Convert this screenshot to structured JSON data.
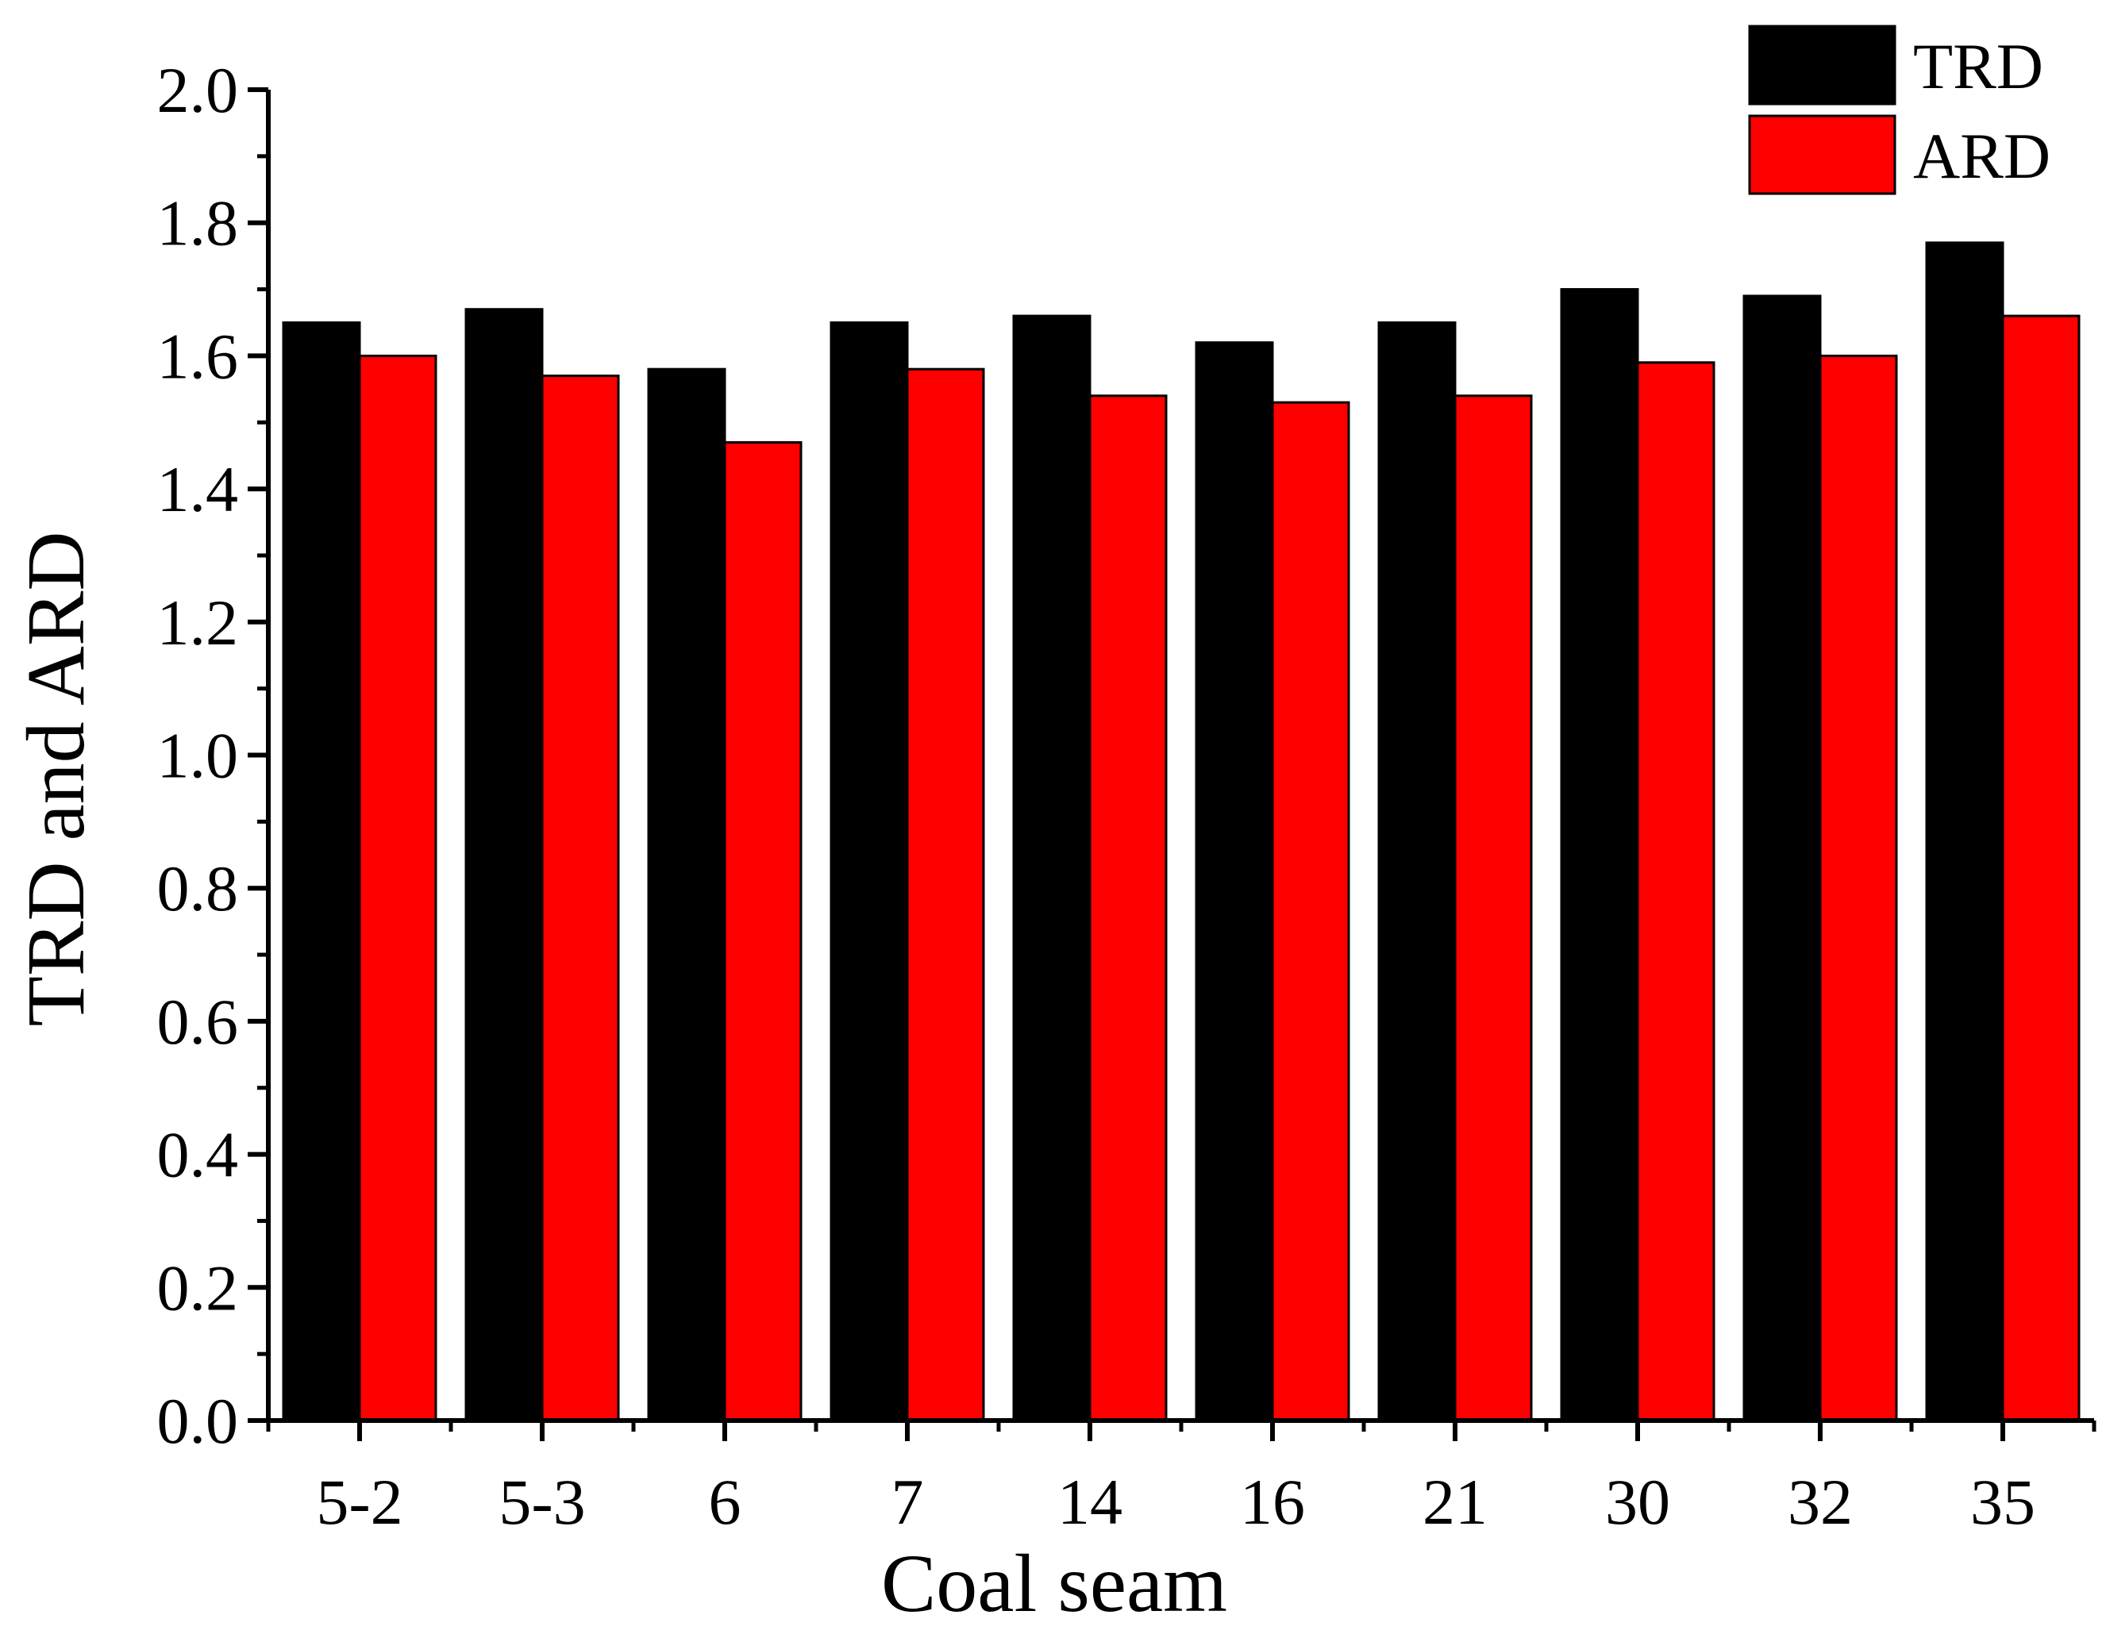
{
  "chart_data": {
    "type": "bar",
    "title": "",
    "xlabel": "Coal seam",
    "ylabel": "TRD and ARD",
    "categories": [
      "5-2",
      "5-3",
      "6",
      "7",
      "14",
      "16",
      "21",
      "30",
      "32",
      "35"
    ],
    "series": [
      {
        "name": "TRD",
        "color": "#000000",
        "values": [
          1.65,
          1.67,
          1.58,
          1.65,
          1.66,
          1.62,
          1.65,
          1.7,
          1.69,
          1.77
        ]
      },
      {
        "name": "ARD",
        "color": "#ff0000",
        "values": [
          1.6,
          1.57,
          1.47,
          1.58,
          1.54,
          1.53,
          1.54,
          1.59,
          1.6,
          1.66
        ]
      }
    ],
    "ylim": [
      0,
      2.0
    ],
    "yticks": [
      "0.0",
      "0.2",
      "0.4",
      "0.6",
      "0.8",
      "1.0",
      "1.2",
      "1.4",
      "1.6",
      "1.8",
      "2.0"
    ],
    "grid": false,
    "legend_position": "top-right"
  }
}
